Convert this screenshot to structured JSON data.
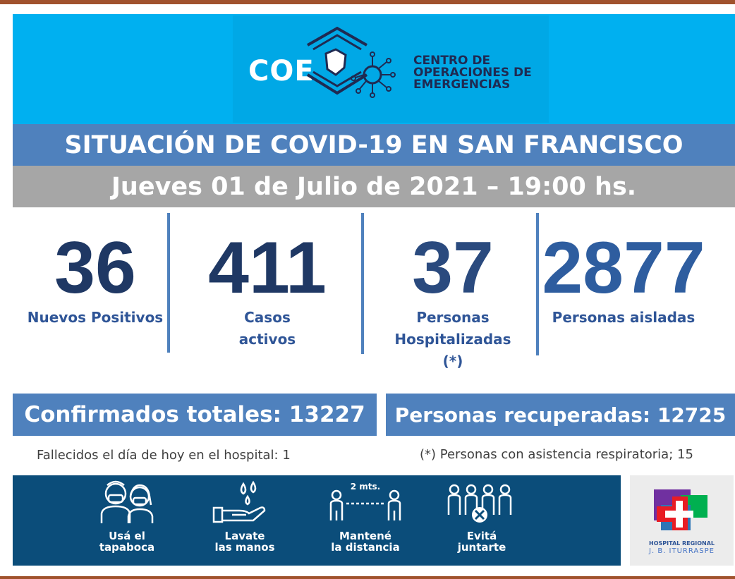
{
  "header": {
    "logo_text": "COE",
    "org_lines": [
      "CENTRO DE",
      "OPERACIONES DE",
      "EMERGENCIAS"
    ],
    "title": "SITUACIÓN DE COVID-19 EN SAN FRANCISCO",
    "date": "Jueves 01 de Julio de 2021 – 19:00 hs."
  },
  "stats": [
    {
      "value": "36",
      "label_lines": [
        "Nuevos Positivos"
      ]
    },
    {
      "value": "411",
      "label_lines": [
        "Casos",
        "activos"
      ]
    },
    {
      "value": "37",
      "label_lines": [
        "Personas",
        "Hospitalizadas",
        "(*)"
      ]
    },
    {
      "value": "2877",
      "label_lines": [
        "Personas aisladas"
      ]
    }
  ],
  "totals": {
    "confirmed": "Confirmados totales: 13227",
    "recovered": "Personas recuperadas: 12725"
  },
  "notes": {
    "deaths": "Fallecidos el día de hoy en el hospital: 1",
    "respiratory": "(*) Personas con asistencia respiratoria; 15"
  },
  "advice": [
    {
      "icon": "masked-people-icon",
      "lines": [
        "Usá el",
        "tapaboca"
      ]
    },
    {
      "icon": "hand-wash-icon",
      "lines": [
        "Lavate",
        "las manos"
      ]
    },
    {
      "icon": "distance-icon",
      "lines": [
        "Mantené",
        "la distancia"
      ],
      "tag": "2 mts."
    },
    {
      "icon": "no-gathering-icon",
      "lines": [
        "Evitá",
        "juntarte"
      ]
    }
  ],
  "hospital": {
    "name": "HOSPITAL REGIONAL",
    "sub": "J. B. ITURRASPE"
  },
  "colors": {
    "banner": "#00b0f0",
    "title_bar": "#4f81bd",
    "date_bar": "#a6a6a6",
    "number": "#1f3864",
    "label": "#2f5597",
    "advice_bg": "#0b4d7a",
    "border": "#a0522d"
  }
}
